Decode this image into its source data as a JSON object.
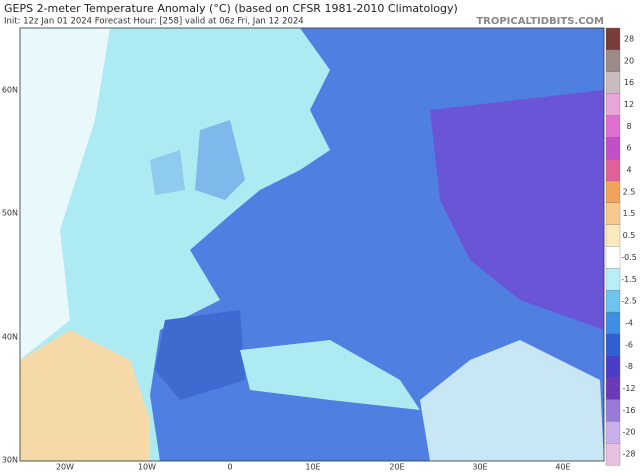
{
  "title": "GEPS 2-meter Temperature Anomaly (°C) (based on CFSR 1981-2010 Climatology)",
  "subtitle": "Init: 12z Jan 01 2024   Forecast Hour: [258]   valid at 06z Fri, Jan 12 2024",
  "watermark": "TROPICALTIDBITS.COM",
  "lat_labels": [
    "60N",
    "50N",
    "40N",
    "30N"
  ],
  "lon_labels": [
    "20W",
    "10W",
    "0",
    "10E",
    "20E",
    "30E",
    "40E"
  ],
  "colorbar": {
    "labels": [
      28,
      20,
      16,
      12,
      8,
      6,
      4,
      2.5,
      1.5,
      0.5,
      -0.5,
      -1.5,
      -2.5,
      -4,
      -6,
      -8,
      -12,
      -16,
      -20,
      -28
    ],
    "colors": [
      "#7a3b3b",
      "#9a8a8a",
      "#c8bcc0",
      "#e8a6d8",
      "#e070d0",
      "#c050c8",
      "#e0609a",
      "#f2a35a",
      "#f7c98a",
      "#faeac0",
      "#ffffff",
      "#b8eef5",
      "#6ec4ec",
      "#3f8ee6",
      "#2f5fd0",
      "#4a3ec8",
      "#6b3ab8",
      "#9a7ad8",
      "#c8b0ea",
      "#e8c0e0"
    ]
  }
}
